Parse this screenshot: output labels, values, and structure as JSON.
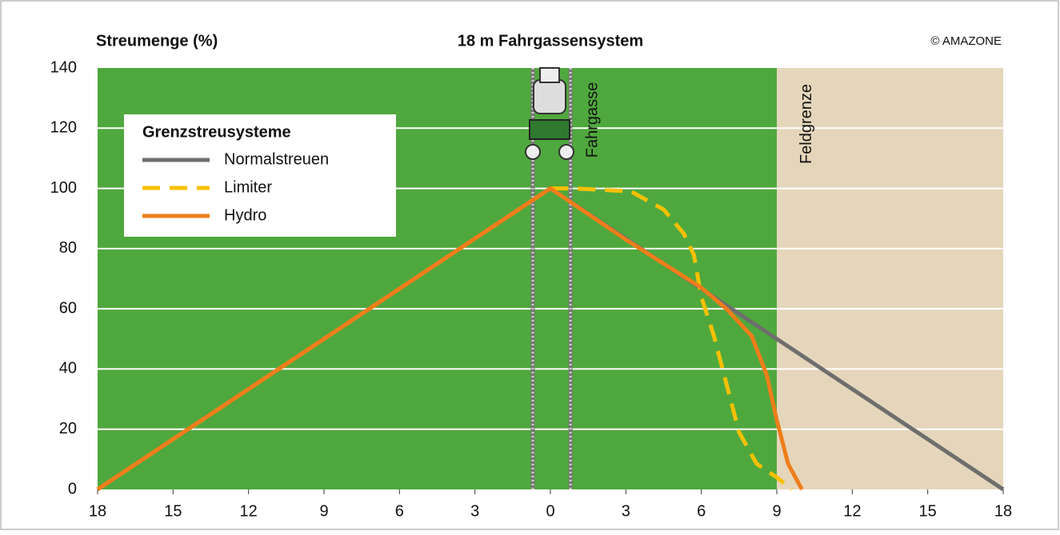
{
  "chart_data": {
    "type": "line",
    "title": "18 m Fahrgassensystem",
    "y_label": "Streumenge (%)",
    "copyright": "© AMAZONE",
    "tramline_label": "Fahrgasse",
    "boundary_label": "Feldgrenze",
    "field_boundary": 9,
    "legend_title": "Grenzstreusysteme",
    "xlim": [
      -18,
      18
    ],
    "xticks": [
      {
        "value": -18,
        "label": "18"
      },
      {
        "value": -15,
        "label": "15"
      },
      {
        "value": -12,
        "label": "12"
      },
      {
        "value": -9,
        "label": "9"
      },
      {
        "value": -6,
        "label": "6"
      },
      {
        "value": -3,
        "label": "3"
      },
      0,
      3,
      6,
      9,
      12,
      15,
      18
    ],
    "ylim": [
      0,
      140
    ],
    "yticks": [
      0,
      20,
      40,
      60,
      80,
      100,
      120,
      140
    ],
    "grid": true,
    "series": [
      {
        "name": "Normalstreuen",
        "color": "#6e6e6e",
        "dash": "solid",
        "x": [
          -18,
          0,
          18
        ],
        "values": [
          0,
          100,
          0
        ]
      },
      {
        "name": "Limiter",
        "color": "#f8c000",
        "dash": "dashed",
        "x": [
          -18,
          0,
          0.9,
          3.2,
          4.5,
          5.3,
          5.7,
          6,
          6.5,
          7,
          7.5,
          8.2,
          9,
          9.6
        ],
        "values": [
          0,
          100,
          100,
          99,
          93,
          85,
          78,
          64,
          51,
          35,
          19,
          8.5,
          4,
          0
        ]
      },
      {
        "name": "Hydro",
        "color": "#f07d1a",
        "dash": "solid",
        "x": [
          -18,
          0,
          3,
          6,
          7,
          8,
          8.6,
          9,
          9.45,
          10
        ],
        "values": [
          0,
          100,
          83,
          67,
          60,
          51,
          38,
          23,
          8.5,
          0
        ]
      }
    ]
  }
}
